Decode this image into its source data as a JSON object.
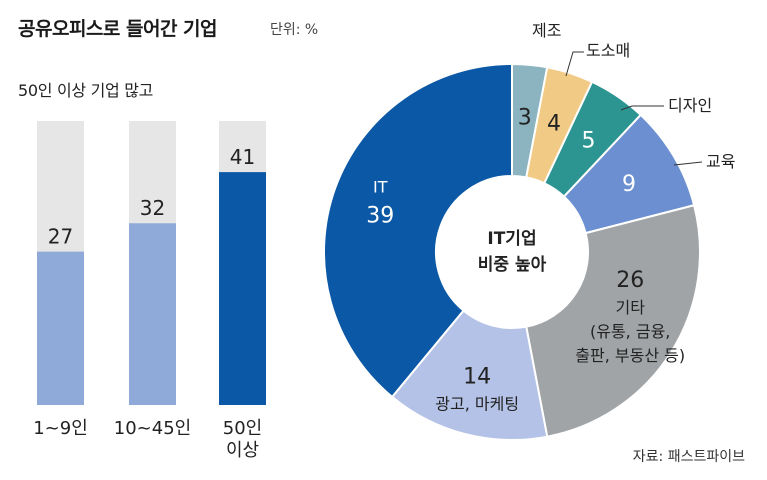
{
  "header": {
    "title": "공유오피스로 들어간 기업",
    "unit": "단위: %"
  },
  "source": "자료: 패스트파이브",
  "chart_data": [
    {
      "type": "bar",
      "title": "50인 이상 기업 많고",
      "categories": [
        "1~9인",
        "10~45인",
        "50인 이상"
      ],
      "category_lines": [
        [
          "1~9인"
        ],
        [
          "10~45인"
        ],
        [
          "50인",
          "이상"
        ]
      ],
      "values": [
        27,
        32,
        41
      ],
      "ylim": [
        0,
        50
      ],
      "colors": [
        "#8fa9d9",
        "#8fa9d9",
        "#0b58a6"
      ],
      "background_color": "#e6e6e6",
      "grid": false
    },
    {
      "type": "pie",
      "style": "donut",
      "center_lines": [
        "IT기업",
        "비중 높아"
      ],
      "slices": [
        {
          "name": "제조",
          "value": 3,
          "color": "#8bb4c0",
          "label_position": "outside"
        },
        {
          "name": "도소매",
          "value": 4,
          "color": "#f1cb86",
          "label_position": "outside"
        },
        {
          "name": "디자인",
          "value": 5,
          "color": "#2c9592",
          "label_position": "outside"
        },
        {
          "name": "교육",
          "value": 9,
          "color": "#6b8fd0",
          "label_position": "outside"
        },
        {
          "name": "기타",
          "detail_lines": [
            "(유통, 금융,",
            "출판, 부동산 등)"
          ],
          "value": 26,
          "color": "#a1a4a6",
          "label_position": "inside"
        },
        {
          "name": "광고, 마케팅",
          "value": 14,
          "color": "#b3c2e6",
          "label_position": "inside"
        },
        {
          "name": "IT",
          "value": 39,
          "color": "#0b58a6",
          "label_position": "inside"
        }
      ]
    }
  ]
}
